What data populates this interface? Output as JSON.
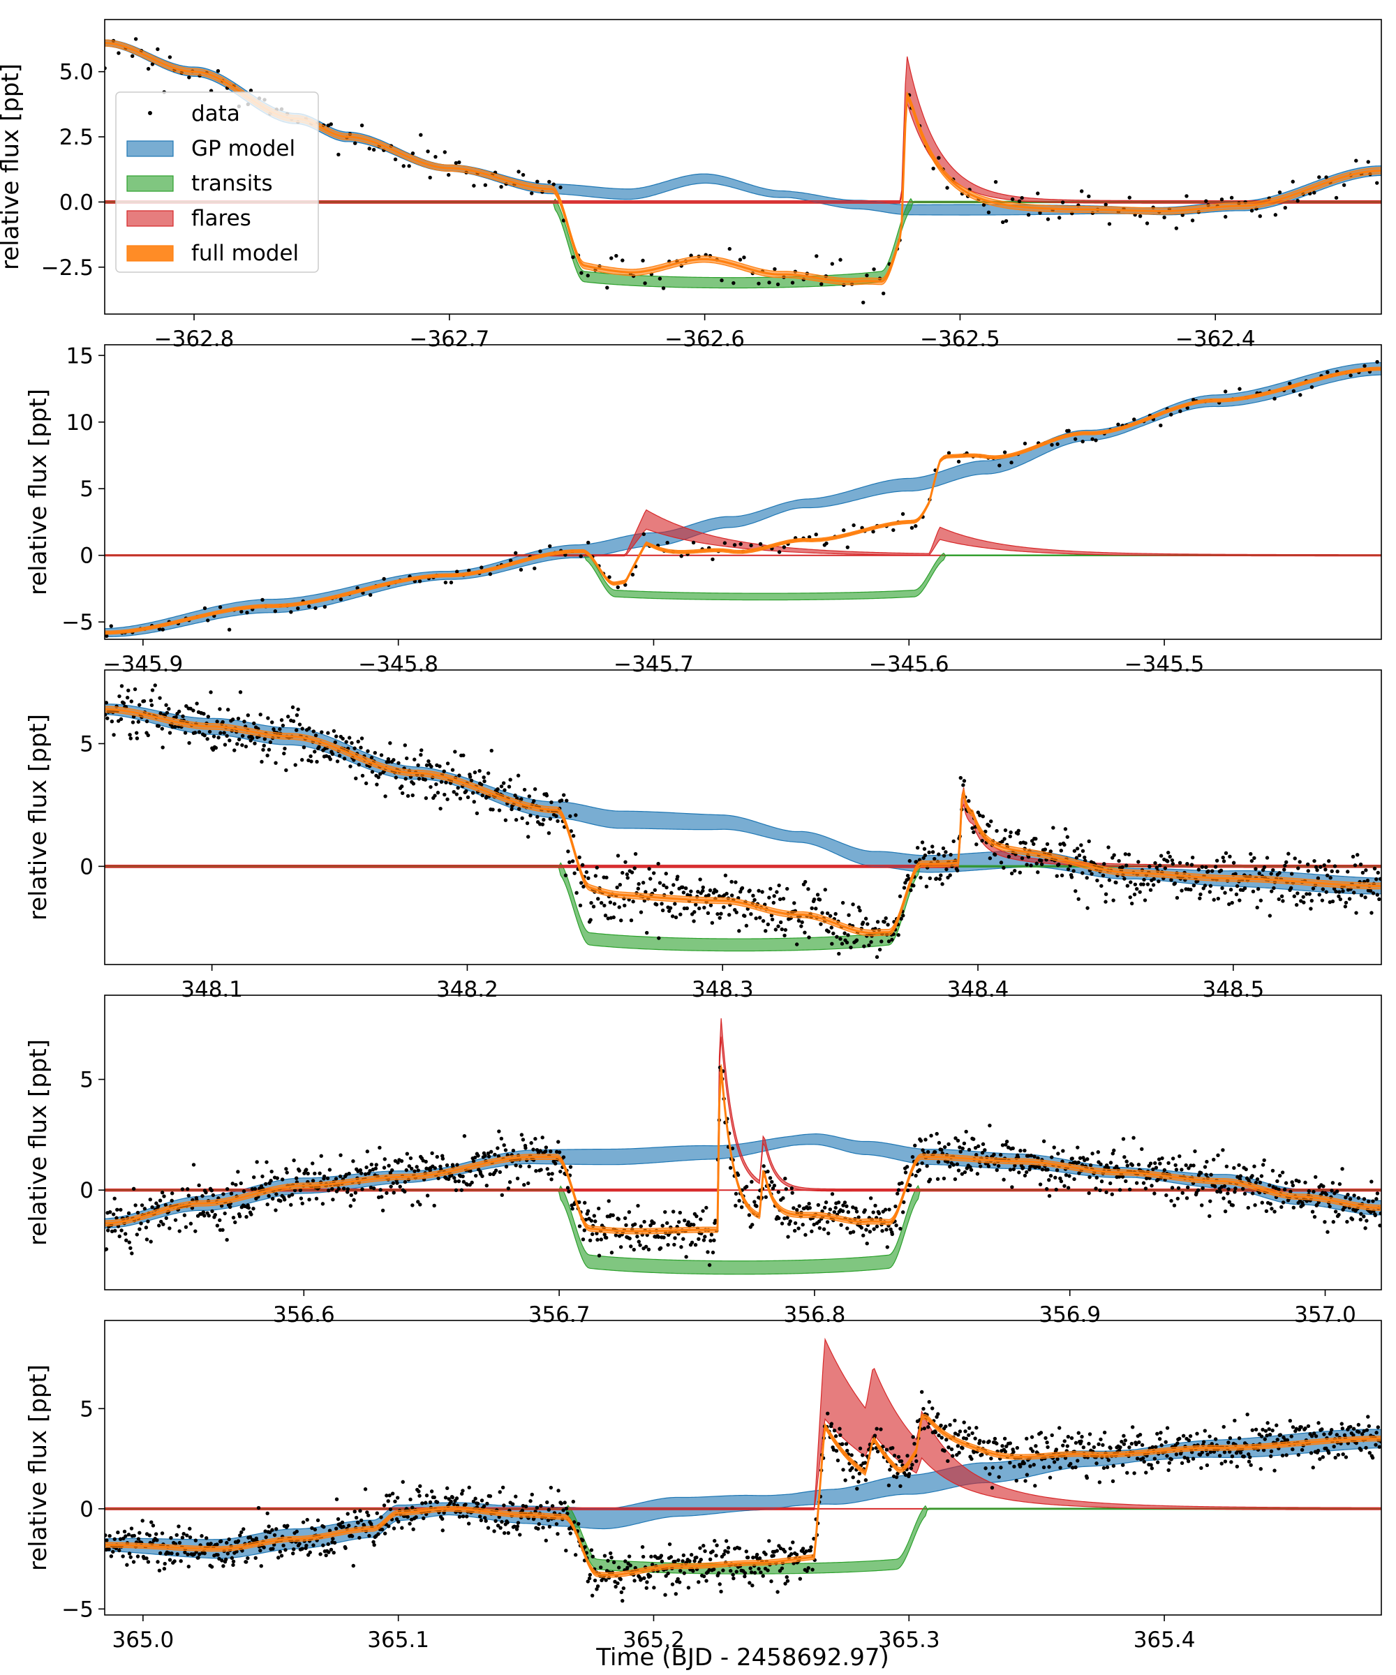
{
  "figure": {
    "xlabel": "Time (BJD - 2458692.97)",
    "ylabel": "relative flux [ppt]"
  },
  "colors": {
    "gp": "#1f77b4",
    "transits": "#2ca02c",
    "flares": "#d62728",
    "full_model": "#ff7f0e",
    "data": "#000000",
    "zero_line": "#d62728"
  },
  "legend": {
    "placement": "upper-left of first panel",
    "entries": [
      {
        "key": "data",
        "label": "data"
      },
      {
        "key": "gp",
        "label": "GP model"
      },
      {
        "key": "transits",
        "label": "transits"
      },
      {
        "key": "flares",
        "label": "flares"
      },
      {
        "key": "full_model",
        "label": "full model"
      }
    ]
  },
  "chart_data": [
    {
      "type": "line",
      "panel": 1,
      "xlim": [
        -362.835,
        -362.335
      ],
      "ylim": [
        -4.3,
        7.0
      ],
      "xticks": [
        -362.8,
        -362.7,
        -362.6,
        -362.5,
        -362.4
      ],
      "xtick_labels": [
        "−362.8",
        "−362.7",
        "−362.6",
        "−362.5",
        "−362.4"
      ],
      "yticks": [
        -2.5,
        0.0,
        2.5,
        5.0
      ],
      "ytick_labels": [
        "−2.5",
        "0.0",
        "2.5",
        "5.0"
      ],
      "transit": {
        "start": -362.66,
        "end": -362.518,
        "depth": 3.1
      },
      "flares": [
        {
          "t": -362.521,
          "amp": 4.8,
          "decay": 0.012,
          "rise": 0.002
        }
      ],
      "gp": [
        [
          -362.835,
          6.1
        ],
        [
          -362.8,
          5.0
        ],
        [
          -362.76,
          3.2
        ],
        [
          -362.74,
          2.5
        ],
        [
          -362.7,
          1.3
        ],
        [
          -362.66,
          0.5
        ],
        [
          -362.63,
          0.3
        ],
        [
          -362.6,
          0.9
        ],
        [
          -362.57,
          0.3
        ],
        [
          -362.54,
          -0.1
        ],
        [
          -362.52,
          -0.3
        ],
        [
          -362.48,
          -0.3
        ],
        [
          -362.45,
          -0.3
        ],
        [
          -362.42,
          -0.35
        ],
        [
          -362.39,
          -0.15
        ],
        [
          -362.335,
          1.2
        ]
      ],
      "gp_halfwidth": 0.2,
      "transit_halfwidth": 0.2,
      "flare_halfwidth_frac": 0.18,
      "data_n": 220,
      "data_noise": 0.35
    },
    {
      "type": "line",
      "panel": 2,
      "xlim": [
        -345.915,
        -345.415
      ],
      "ylim": [
        -6.3,
        15.8
      ],
      "xticks": [
        -345.9,
        -345.8,
        -345.7,
        -345.6,
        -345.5
      ],
      "xtick_labels": [
        "−345.9",
        "−345.8",
        "−345.7",
        "−345.6",
        "−345.5"
      ],
      "yticks": [
        -5,
        0,
        5,
        10,
        15
      ],
      "ytick_labels": [
        "−5",
        "0",
        "5",
        "10",
        "15"
      ],
      "transit": {
        "start": -345.728,
        "end": -345.585,
        "depth": 3.1
      },
      "flares": [
        {
          "t": -345.703,
          "amp": 2.7,
          "decay": 0.03,
          "rise": 0.008
        },
        {
          "t": -345.588,
          "amp": 1.6,
          "decay": 0.025,
          "rise": 0.004
        }
      ],
      "gp": [
        [
          -345.915,
          -5.8
        ],
        [
          -345.85,
          -3.8
        ],
        [
          -345.78,
          -1.5
        ],
        [
          -345.73,
          0.3
        ],
        [
          -345.7,
          1.2
        ],
        [
          -345.67,
          2.5
        ],
        [
          -345.64,
          3.9
        ],
        [
          -345.6,
          5.3
        ],
        [
          -345.57,
          6.6
        ],
        [
          -345.53,
          9.0
        ],
        [
          -345.48,
          11.6
        ],
        [
          -345.415,
          14.0
        ]
      ],
      "gp_halfwidth": 0.5,
      "transit_halfwidth": 0.25,
      "flare_halfwidth_frac": 0.25,
      "data_n": 200,
      "data_noise": 0.35
    },
    {
      "type": "line",
      "panel": 3,
      "xlim": [
        348.058,
        348.558
      ],
      "ylim": [
        -4.0,
        8.0
      ],
      "xticks": [
        348.1,
        348.2,
        348.3,
        348.4,
        348.5
      ],
      "xtick_labels": [
        "348.1",
        "348.2",
        "348.3",
        "348.4",
        "348.5"
      ],
      "yticks": [
        0,
        5
      ],
      "ytick_labels": [
        "0",
        "5"
      ],
      "transit": {
        "start": 348.235,
        "end": 348.378,
        "depth": 3.2
      },
      "flares": [
        {
          "t": 348.394,
          "amp": 3.2,
          "decay": 0.004,
          "rise": 0.0015
        },
        {
          "t": 348.398,
          "amp": 0.8,
          "decay": 0.02,
          "rise": 0.003
        }
      ],
      "gp": [
        [
          348.058,
          6.4
        ],
        [
          348.1,
          5.7
        ],
        [
          348.13,
          5.3
        ],
        [
          348.18,
          3.8
        ],
        [
          348.235,
          2.3
        ],
        [
          348.26,
          1.9
        ],
        [
          348.3,
          1.8
        ],
        [
          348.33,
          1.2
        ],
        [
          348.36,
          0.3
        ],
        [
          348.38,
          0.1
        ],
        [
          348.42,
          0.3
        ],
        [
          348.46,
          -0.3
        ],
        [
          348.5,
          -0.5
        ],
        [
          348.558,
          -0.8
        ]
      ],
      "gp_halfwidth": 0.35,
      "transit_halfwidth": 0.25,
      "flare_halfwidth_frac": 0.1,
      "data_n": 1150,
      "data_noise": 0.55
    },
    {
      "type": "line",
      "panel": 4,
      "xlim": [
        356.522,
        357.022
      ],
      "ylim": [
        -4.5,
        8.8
      ],
      "xticks": [
        356.6,
        356.7,
        356.8,
        356.9,
        357.0
      ],
      "xtick_labels": [
        "356.6",
        "356.7",
        "356.8",
        "356.9",
        "357.0"
      ],
      "yticks": [
        0,
        5
      ],
      "ytick_labels": [
        "0",
        "5"
      ],
      "transit": {
        "start": 356.699,
        "end": 356.842,
        "depth": 3.5
      },
      "flares": [
        {
          "t": 356.763,
          "amp": 8.0,
          "decay": 0.005,
          "rise": 0.001
        },
        {
          "t": 356.78,
          "amp": 2.2,
          "decay": 0.004,
          "rise": 0.0015
        }
      ],
      "gp": [
        [
          356.522,
          -1.5
        ],
        [
          356.56,
          -0.6
        ],
        [
          356.6,
          0.2
        ],
        [
          356.64,
          0.6
        ],
        [
          356.69,
          1.5
        ],
        [
          356.72,
          1.5
        ],
        [
          356.76,
          1.7
        ],
        [
          356.8,
          2.3
        ],
        [
          356.82,
          1.9
        ],
        [
          356.845,
          1.5
        ],
        [
          356.88,
          1.3
        ],
        [
          356.92,
          0.8
        ],
        [
          356.96,
          0.4
        ],
        [
          356.99,
          -0.3
        ],
        [
          357.022,
          -0.8
        ]
      ],
      "gp_halfwidth": 0.35,
      "transit_halfwidth": 0.3,
      "flare_halfwidth_frac": 0.05,
      "data_n": 1250,
      "data_noise": 0.55
    },
    {
      "type": "line",
      "panel": 5,
      "xlim": [
        364.985,
        365.485
      ],
      "ylim": [
        -5.3,
        9.4
      ],
      "xticks": [
        365.0,
        365.1,
        365.2,
        365.3,
        365.4
      ],
      "xtick_labels": [
        "365.0",
        "365.1",
        "365.2",
        "365.3",
        "365.4"
      ],
      "yticks": [
        -5,
        0,
        5
      ],
      "ytick_labels": [
        "−5",
        "0",
        "5"
      ],
      "transit": {
        "start": 365.165,
        "end": 365.308,
        "depth": 3.0
      },
      "flares": [
        {
          "t": 365.267,
          "amp": 6.5,
          "decay": 0.03,
          "rise": 0.004
        },
        {
          "t": 365.286,
          "amp": 2.0,
          "decay": 0.015,
          "rise": 0.003
        },
        {
          "t": 365.305,
          "amp": 1.3,
          "decay": 0.012,
          "rise": 0.002
        }
      ],
      "gp": [
        [
          364.985,
          -1.8
        ],
        [
          365.03,
          -2.0
        ],
        [
          365.06,
          -1.5
        ],
        [
          365.09,
          -1.0
        ],
        [
          365.1,
          -0.2
        ],
        [
          365.12,
          0.0
        ],
        [
          365.15,
          -0.3
        ],
        [
          365.165,
          -0.4
        ],
        [
          365.18,
          -0.5
        ],
        [
          365.21,
          0.1
        ],
        [
          365.24,
          0.3
        ],
        [
          365.27,
          0.6
        ],
        [
          365.3,
          1.2
        ],
        [
          365.33,
          1.8
        ],
        [
          365.37,
          2.5
        ],
        [
          365.42,
          3.0
        ],
        [
          365.485,
          3.5
        ]
      ],
      "gp_halfwidth": 0.5,
      "transit_halfwidth": 0.25,
      "flare_halfwidth_frac": 0.3,
      "data_n": 1300,
      "data_noise": 0.55
    }
  ]
}
